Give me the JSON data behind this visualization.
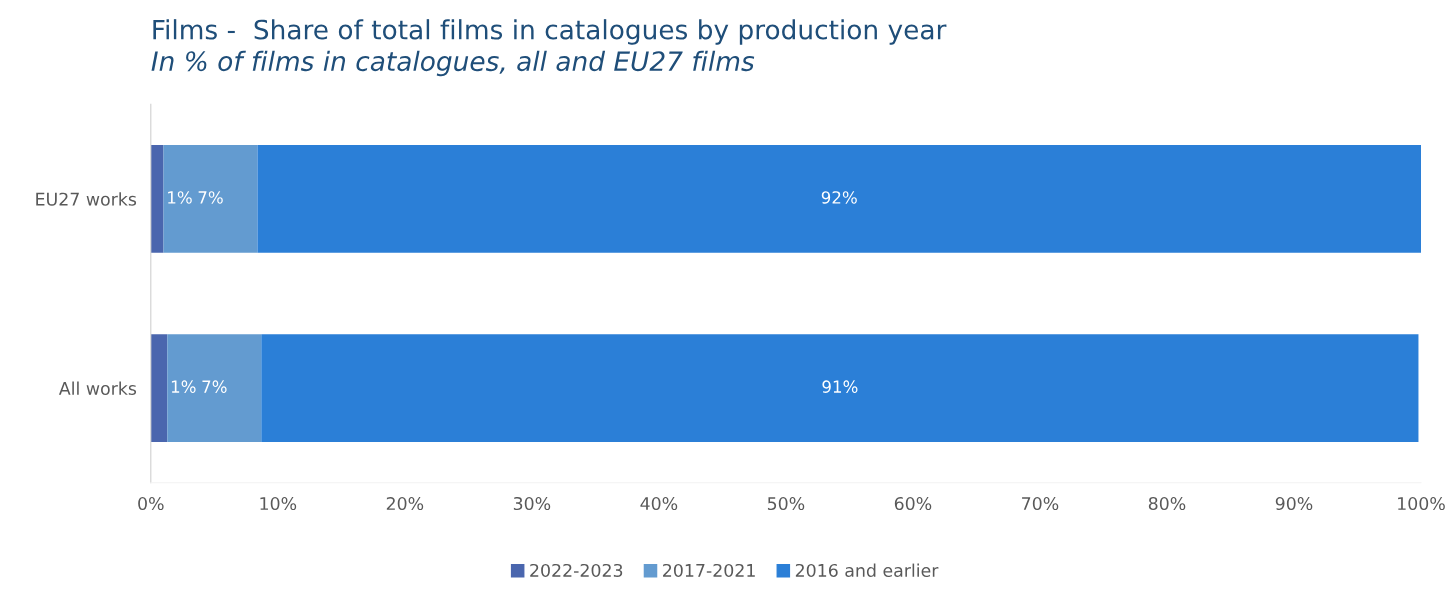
{
  "chart_data": {
    "type": "bar",
    "orientation": "horizontal",
    "stacked": true,
    "title": "Films -  Share of total films in catalogues by production year",
    "subtitle": "In % of films in catalogues, all and EU27 films",
    "categories": [
      "EU27 works",
      "All works"
    ],
    "series": [
      {
        "name": "2022-2023",
        "color": "#4a66ae",
        "values": [
          1.0,
          1.3
        ],
        "value_labels": [
          "1%",
          "1%"
        ]
      },
      {
        "name": "2017-2021",
        "color": "#639bd0",
        "values": [
          7.4,
          7.4
        ],
        "value_labels": [
          "7%",
          "7%"
        ]
      },
      {
        "name": "2016 and earlier",
        "color": "#2b7fd7",
        "values": [
          91.6,
          91.1
        ],
        "value_labels": [
          "92%",
          "91%"
        ]
      }
    ],
    "xlim": [
      0,
      100
    ],
    "xticks": [
      {
        "value": 0,
        "label": "0%"
      },
      {
        "value": 10,
        "label": "10%"
      },
      {
        "value": 20,
        "label": "20%"
      },
      {
        "value": 30,
        "label": "30%"
      },
      {
        "value": 40,
        "label": "40%"
      },
      {
        "value": 50,
        "label": "50%"
      },
      {
        "value": 60,
        "label": "60%"
      },
      {
        "value": 70,
        "label": "70%"
      },
      {
        "value": 80,
        "label": "80%"
      },
      {
        "value": 90,
        "label": "90%"
      },
      {
        "value": 100,
        "label": "100%"
      }
    ],
    "grid": false,
    "legend": "bottom"
  }
}
